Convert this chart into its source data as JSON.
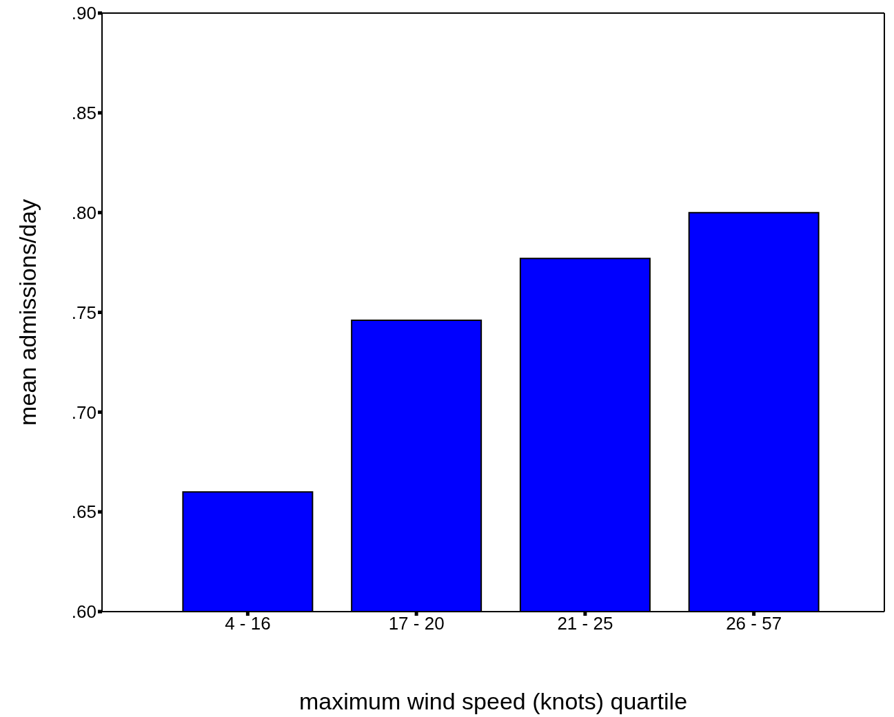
{
  "chart_data": {
    "type": "bar",
    "xlabel": "maximum wind speed (knots) quartile",
    "ylabel": "mean admissions/day",
    "categories": [
      "4 - 16",
      "17 - 20",
      "21 - 25",
      "26 - 57"
    ],
    "values": [
      0.66,
      0.746,
      0.777,
      0.8
    ],
    "color": "#0000ff",
    "ylim": [
      0.6,
      0.9
    ],
    "yticks": [
      {
        "value": 0.6,
        "label": ".60"
      },
      {
        "value": 0.65,
        "label": ".65"
      },
      {
        "value": 0.7,
        "label": ".70"
      },
      {
        "value": 0.75,
        "label": ".75"
      },
      {
        "value": 0.8,
        "label": ".80"
      },
      {
        "value": 0.85,
        "label": ".85"
      },
      {
        "value": 0.9,
        "label": ".90"
      }
    ],
    "grid": false,
    "legend": false
  }
}
